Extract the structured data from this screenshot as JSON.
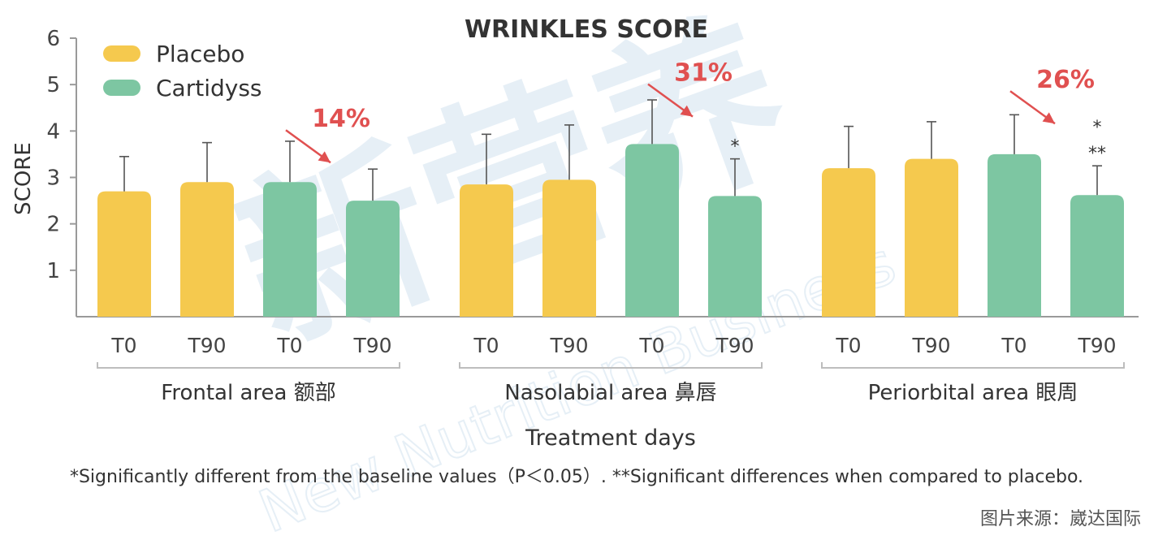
{
  "chart_data": {
    "type": "bar",
    "title": "WRINKLES SCORE",
    "ylabel": "SCORE",
    "xlabel": "Treatment days",
    "ylim": [
      0,
      6
    ],
    "yticks": [
      1,
      2,
      3,
      4,
      5,
      6
    ],
    "grid": false,
    "legend": {
      "position": "top-left",
      "items": [
        {
          "name": "Placebo",
          "color": "#F5C94E"
        },
        {
          "name": "Cartidyss",
          "color": "#7DC6A2"
        }
      ]
    },
    "groups": [
      {
        "label": "Frontal area 额部",
        "reduction_label": "14%",
        "bars": [
          {
            "tick": "T0",
            "series": "Placebo",
            "value": 2.7,
            "error": 0.75,
            "stars": []
          },
          {
            "tick": "T90",
            "series": "Placebo",
            "value": 2.9,
            "error": 0.85,
            "stars": []
          },
          {
            "tick": "T0",
            "series": "Cartidyss",
            "value": 2.9,
            "error": 0.88,
            "stars": []
          },
          {
            "tick": "T90",
            "series": "Cartidyss",
            "value": 2.5,
            "error": 0.68,
            "stars": []
          }
        ]
      },
      {
        "label": "Nasolabial area 鼻唇",
        "reduction_label": "31%",
        "bars": [
          {
            "tick": "T0",
            "series": "Placebo",
            "value": 2.85,
            "error": 1.08,
            "stars": []
          },
          {
            "tick": "T90",
            "series": "Placebo",
            "value": 2.95,
            "error": 1.18,
            "stars": []
          },
          {
            "tick": "T0",
            "series": "Cartidyss",
            "value": 3.72,
            "error": 0.95,
            "stars": []
          },
          {
            "tick": "T90",
            "series": "Cartidyss",
            "value": 2.6,
            "error": 0.8,
            "stars": [
              "*"
            ]
          }
        ]
      },
      {
        "label": "Periorbital area 眼周",
        "reduction_label": "26%",
        "bars": [
          {
            "tick": "T0",
            "series": "Placebo",
            "value": 3.2,
            "error": 0.9,
            "stars": []
          },
          {
            "tick": "T90",
            "series": "Placebo",
            "value": 3.4,
            "error": 0.8,
            "stars": []
          },
          {
            "tick": "T0",
            "series": "Cartidyss",
            "value": 3.5,
            "error": 0.85,
            "stars": []
          },
          {
            "tick": "T90",
            "series": "Cartidyss",
            "value": 2.62,
            "error": 0.63,
            "stars": [
              "*",
              "**"
            ]
          }
        ]
      }
    ],
    "footnote": "*Significantly different from the baseline values（P＜0.05）. **Significant differences when compared to placebo.",
    "credit": "图片来源：崴达国际",
    "colors": {
      "placebo": "#F5C94E",
      "cartidyss": "#7DC6A2",
      "annotation": "#E05050",
      "axis": "#9a9a9a",
      "error_bar": "#555555",
      "watermark": "#D3E3F0"
    },
    "watermark_text": "新营养 New Nutrition Business"
  }
}
